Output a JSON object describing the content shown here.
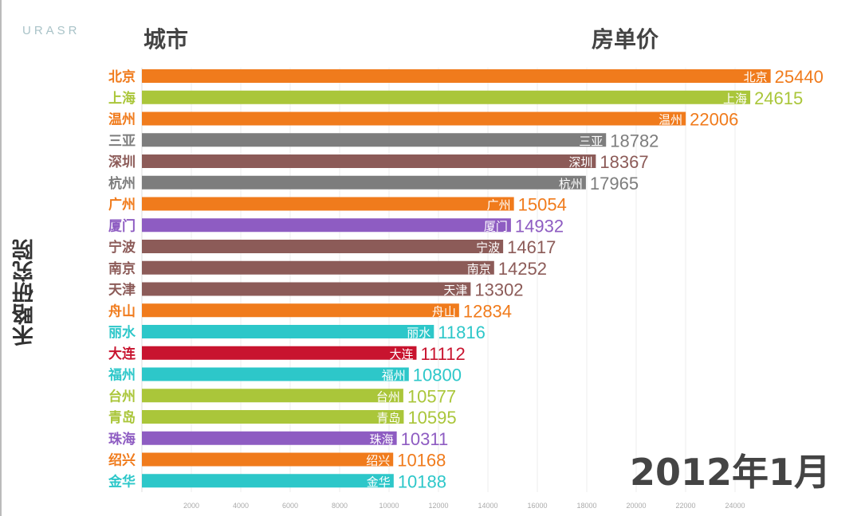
{
  "logo": "URASR",
  "header": {
    "city": "城市",
    "price": "房单价"
  },
  "y_title": "禾略研究院",
  "date_label": "2012年1月",
  "chart_data": {
    "type": "bar",
    "orientation": "horizontal",
    "xlim": [
      0,
      26000
    ],
    "xticks": [
      2000,
      4000,
      6000,
      8000,
      10000,
      12000,
      14000,
      16000,
      18000,
      20000,
      22000,
      24000
    ],
    "grid": true,
    "categories": [
      "北京",
      "上海",
      "温州",
      "三亚",
      "深圳",
      "杭州",
      "广州",
      "厦门",
      "宁波",
      "南京",
      "天津",
      "舟山",
      "丽水",
      "大连",
      "福州",
      "台州",
      "青岛",
      "珠海",
      "绍兴",
      "金华"
    ],
    "values": [
      25440,
      24615,
      22006,
      18782,
      18367,
      17965,
      15054,
      14932,
      14617,
      14252,
      13302,
      12834,
      11816,
      11112,
      10800,
      10577,
      10595,
      10311,
      10168,
      10188
    ],
    "colors": [
      "#f07b1c",
      "#aac63a",
      "#f07b1c",
      "#7d7d7d",
      "#8c5b58",
      "#7d7d7d",
      "#f07b1c",
      "#8e5cc2",
      "#8c5b58",
      "#8c5b58",
      "#8c5b58",
      "#f07b1c",
      "#2dc7c9",
      "#c8142f",
      "#2dc7c9",
      "#aac63a",
      "#aac63a",
      "#8e5cc2",
      "#f07b1c",
      "#2dc7c9"
    ]
  }
}
